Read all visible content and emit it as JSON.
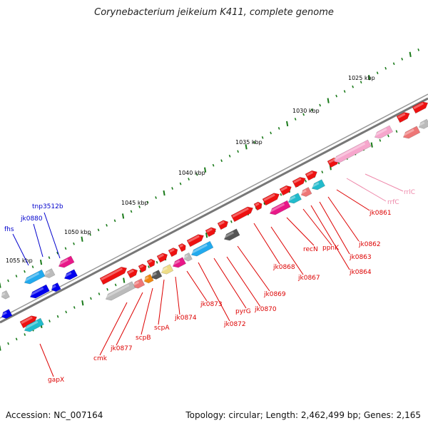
{
  "title": "Corynebacterium jeikeium K411, complete genome",
  "footer": {
    "accession": "Accession: NC_007164",
    "topology": "Topology: circular; Length: 2,462,499 bp; Genes: 2,165"
  },
  "colors": {
    "backbone": "#808080",
    "tick": "#1a7a1a",
    "red_label": "#dd0000",
    "blue_label": "#0000cc",
    "pink_label": "#ee88aa"
  },
  "ruler_labels": [
    "1025 kbp",
    "1030 kbp",
    "1035 kbp",
    "1040 kbp",
    "1045 kbp",
    "1050 kbp",
    "1055 kbp"
  ],
  "gene_labels": {
    "red": [
      "jk0861",
      "jk0862",
      "jk0863",
      "jk0864",
      "ppnK",
      "recN",
      "jk0867",
      "jk0868",
      "jk0869",
      "jk0870",
      "pyrG",
      "jk0872",
      "jk0873",
      "jk0874",
      "scpA",
      "scpB",
      "jk0877",
      "cmk",
      "gapX"
    ],
    "blue": [
      "tnp3512b",
      "jk0880",
      "fhs"
    ],
    "pink": [
      "rrlC",
      "rrfC"
    ]
  }
}
